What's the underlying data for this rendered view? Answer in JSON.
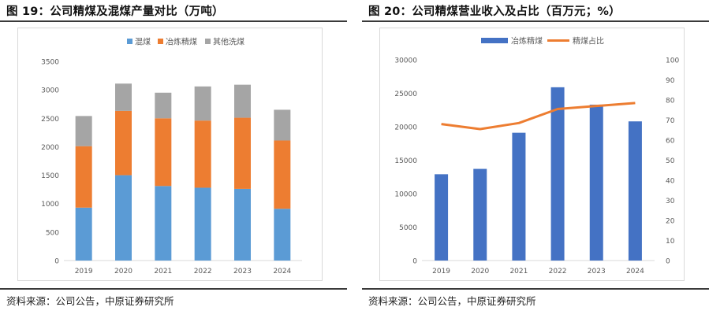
{
  "left": {
    "title": "图 19：公司精煤及混煤产量对比（万吨）",
    "source": "资料来源：公司公告，中原证券研究所",
    "chart_data": {
      "type": "bar",
      "stacked": true,
      "title": "",
      "categories": [
        "2019",
        "2020",
        "2021",
        "2022",
        "2023",
        "2024"
      ],
      "series": [
        {
          "name": "混煤",
          "color": "#5b9bd5",
          "values": [
            930,
            1500,
            1310,
            1280,
            1260,
            910
          ]
        },
        {
          "name": "冶炼精煤",
          "color": "#ed7d31",
          "values": [
            1080,
            1130,
            1190,
            1180,
            1250,
            1200
          ]
        },
        {
          "name": "其他洗煤",
          "color": "#a5a5a5",
          "values": [
            530,
            480,
            450,
            600,
            580,
            540
          ]
        }
      ],
      "yticks": [
        "0",
        "500",
        "1000",
        "1500",
        "2000",
        "2500",
        "3000",
        "3500"
      ],
      "ylim": [
        0,
        3500
      ],
      "legend": "top",
      "grid": false
    }
  },
  "right": {
    "title": "图 20：公司精煤营业收入及占比（百万元；%）",
    "source": "资料来源：公司公告，中原证券研究所",
    "chart_data": {
      "type": "bar",
      "title": "",
      "categories": [
        "2019",
        "2020",
        "2021",
        "2022",
        "2023",
        "2024"
      ],
      "series": [
        {
          "name": "冶炼精煤",
          "type": "bar",
          "axis": "left",
          "color": "#4472c4",
          "values": [
            12900,
            13700,
            19100,
            25900,
            23300,
            20800
          ]
        },
        {
          "name": "精煤占比",
          "type": "line",
          "axis": "right",
          "color": "#ed7d31",
          "values": [
            68,
            65.5,
            68.5,
            75.5,
            77,
            78.5
          ]
        }
      ],
      "yticks_left": [
        "0",
        "5000",
        "10000",
        "15000",
        "20000",
        "25000",
        "30000"
      ],
      "ylim_left": [
        0,
        30000
      ],
      "yticks_right": [
        "0",
        "10",
        "20",
        "30",
        "40",
        "50",
        "60",
        "70",
        "80",
        "90",
        "100"
      ],
      "ylim_right": [
        0,
        100
      ],
      "legend": "top",
      "grid": false
    }
  }
}
